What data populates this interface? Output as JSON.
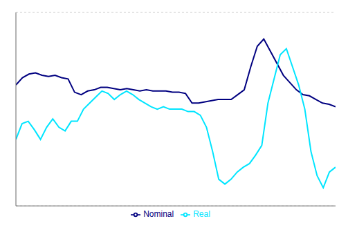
{
  "chart_data": {
    "type": "line",
    "series": [
      {
        "name": "Nominal",
        "color": "#000080",
        "values": [
          4.0,
          4.6,
          4.9,
          5.0,
          4.8,
          4.7,
          4.8,
          4.6,
          4.5,
          3.4,
          3.2,
          3.5,
          3.6,
          3.8,
          3.8,
          3.7,
          3.6,
          3.7,
          3.6,
          3.5,
          3.6,
          3.5,
          3.5,
          3.5,
          3.4,
          3.4,
          3.3,
          2.5,
          2.5,
          2.6,
          2.7,
          2.8,
          2.8,
          2.8,
          3.2,
          3.6,
          5.5,
          7.2,
          7.8,
          6.8,
          5.8,
          4.8,
          4.2,
          3.6,
          3.2,
          3.1,
          2.8,
          2.5,
          2.4,
          2.2
        ]
      },
      {
        "name": "Real",
        "color": "#00E5FF",
        "values": [
          -0.5,
          0.8,
          1.0,
          0.3,
          -0.5,
          0.5,
          1.2,
          0.5,
          0.2,
          1.0,
          1.0,
          2.0,
          2.5,
          3.0,
          3.5,
          3.3,
          2.8,
          3.2,
          3.5,
          3.2,
          2.8,
          2.5,
          2.2,
          2.0,
          2.2,
          2.0,
          2.0,
          2.0,
          1.8,
          1.8,
          1.5,
          0.5,
          -1.5,
          -3.8,
          -4.2,
          -3.8,
          -3.2,
          -2.8,
          -2.5,
          -1.8,
          -1.0,
          2.5,
          4.5,
          6.5,
          7.0,
          5.5,
          4.0,
          2.0,
          -1.5,
          -3.5,
          -4.5,
          -3.2,
          -2.8
        ]
      }
    ],
    "xlim": [
      0,
      1
    ],
    "ylim": [
      -6,
      10
    ],
    "yticks": [
      -2,
      0,
      2,
      4,
      6
    ],
    "grid": true,
    "legend": "bottom",
    "tick_labels": false
  }
}
